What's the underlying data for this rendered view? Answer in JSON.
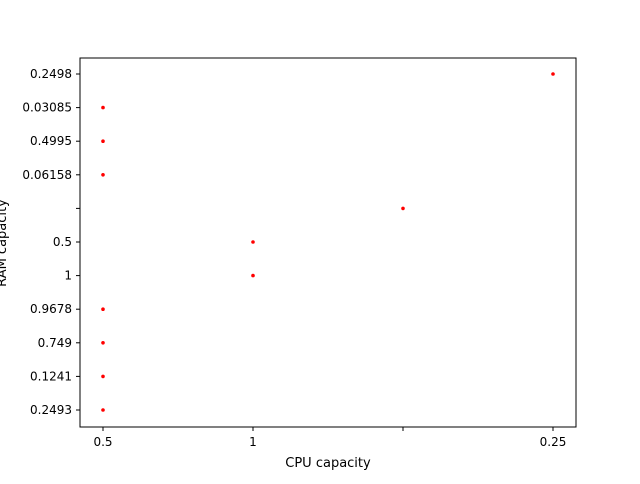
{
  "chart_data": {
    "type": "scatter",
    "title": "",
    "xlabel": "CPU capacity",
    "ylabel": "RAM capacity",
    "x_categories": [
      "0.5",
      "1",
      "",
      "0.25"
    ],
    "y_categories": [
      "0.2493",
      "0.1241",
      "0.749",
      "0.9678",
      "1",
      "0.5",
      "",
      "0.06158",
      "0.4995",
      "0.03085",
      "0.2498"
    ],
    "points": [
      {
        "x": "0.5",
        "y": "0.2493"
      },
      {
        "x": "0.5",
        "y": "0.1241"
      },
      {
        "x": "0.5",
        "y": "0.749"
      },
      {
        "x": "0.5",
        "y": "0.9678"
      },
      {
        "x": "1",
        "y": "1"
      },
      {
        "x": "1",
        "y": "0.5"
      },
      {
        "x": "",
        "y": ""
      },
      {
        "x": "0.5",
        "y": "0.06158"
      },
      {
        "x": "0.5",
        "y": "0.4995"
      },
      {
        "x": "0.5",
        "y": "0.03085"
      },
      {
        "x": "0.25",
        "y": "0.2498"
      }
    ],
    "marker_color": "#ff0000",
    "grid": false,
    "legend": "none"
  }
}
